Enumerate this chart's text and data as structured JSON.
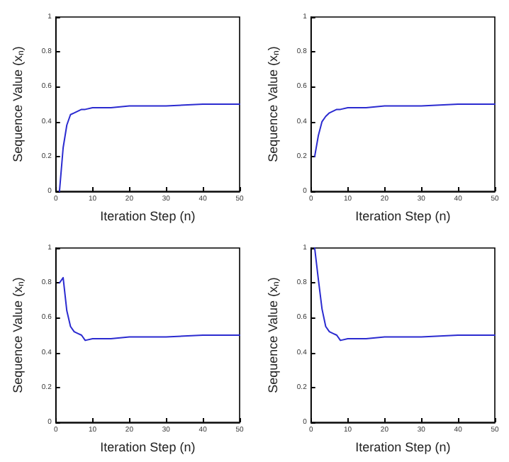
{
  "chart_data": [
    {
      "type": "line",
      "xlabel": "Iteration Step (n)",
      "ylabel": "Sequence Value (x$_{n}$)",
      "xlim": [
        0,
        50
      ],
      "ylim": [
        0,
        1
      ],
      "xticks": [
        0,
        10,
        20,
        30,
        40,
        50
      ],
      "yticks": [
        0,
        0.2,
        0.4,
        0.6,
        0.8,
        1
      ],
      "grid": false,
      "line_style": "solid",
      "series": [
        {
          "color": "#2b2bd0",
          "x": [
            1,
            2,
            3,
            4,
            5,
            6,
            7,
            8,
            10,
            12,
            15,
            20,
            25,
            30,
            40,
            50
          ],
          "values": [
            0,
            0.25,
            0.38,
            0.44,
            0.45,
            0.46,
            0.47,
            0.47,
            0.48,
            0.48,
            0.48,
            0.49,
            0.49,
            0.49,
            0.5,
            0.5
          ]
        }
      ]
    },
    {
      "type": "line",
      "xlabel": "Iteration Step (n)",
      "ylabel": "Sequence Value (x$_{n}$)",
      "xlim": [
        0,
        50
      ],
      "ylim": [
        0,
        1
      ],
      "xticks": [
        0,
        10,
        20,
        30,
        40,
        50
      ],
      "yticks": [
        0,
        0.2,
        0.4,
        0.6,
        0.8,
        1
      ],
      "grid": false,
      "line_style": "solid",
      "series": [
        {
          "color": "#2b2bd0",
          "x": [
            1,
            2,
            3,
            4,
            5,
            6,
            7,
            8,
            10,
            12,
            15,
            20,
            25,
            30,
            40,
            50
          ],
          "values": [
            0.2,
            0.32,
            0.4,
            0.43,
            0.45,
            0.46,
            0.47,
            0.47,
            0.48,
            0.48,
            0.48,
            0.49,
            0.49,
            0.49,
            0.5,
            0.5
          ]
        }
      ]
    },
    {
      "type": "line",
      "xlabel": "Iteration Step (n)",
      "ylabel": "Sequence Value (x$_{n}$)",
      "xlim": [
        0,
        50
      ],
      "ylim": [
        0,
        1
      ],
      "xticks": [
        0,
        10,
        20,
        30,
        40,
        50
      ],
      "yticks": [
        0,
        0.2,
        0.4,
        0.6,
        0.8,
        1
      ],
      "grid": false,
      "line_style": "solid",
      "series": [
        {
          "color": "#2b2bd0",
          "x": [
            1,
            2,
            3,
            4,
            5,
            6,
            7,
            8,
            10,
            12,
            15,
            20,
            25,
            30,
            40,
            50
          ],
          "values": [
            0.8,
            0.83,
            0.64,
            0.55,
            0.52,
            0.51,
            0.5,
            0.47,
            0.48,
            0.48,
            0.48,
            0.49,
            0.49,
            0.49,
            0.5,
            0.5
          ]
        }
      ]
    },
    {
      "type": "line",
      "xlabel": "Iteration Step (n)",
      "ylabel": "Sequence Value (x$_{n}$)",
      "xlim": [
        0,
        50
      ],
      "ylim": [
        0,
        1
      ],
      "xticks": [
        0,
        10,
        20,
        30,
        40,
        50
      ],
      "yticks": [
        0,
        0.2,
        0.4,
        0.6,
        0.8,
        1
      ],
      "grid": false,
      "line_style": "solid",
      "series": [
        {
          "color": "#2b2bd0",
          "x": [
            1,
            2,
            3,
            4,
            5,
            6,
            7,
            8,
            10,
            12,
            15,
            20,
            25,
            30,
            40,
            50
          ],
          "values": [
            1,
            0.82,
            0.65,
            0.55,
            0.52,
            0.51,
            0.5,
            0.47,
            0.48,
            0.48,
            0.48,
            0.49,
            0.49,
            0.49,
            0.5,
            0.5
          ]
        }
      ]
    }
  ]
}
